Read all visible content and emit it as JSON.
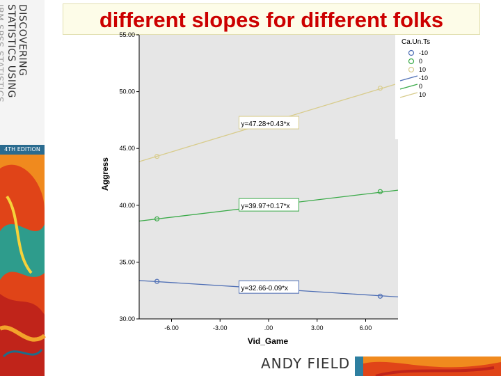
{
  "slide": {
    "title": "different slopes for different folks",
    "author_logo": "ANDY FIELD"
  },
  "book": {
    "lines": [
      "DISCOVERING",
      "STATISTICS USING",
      "IBM SPSS STATISTICS"
    ],
    "edition": "4TH EDITION"
  },
  "chart_data": {
    "type": "scatter",
    "xlabel": "Vid_Game",
    "ylabel": "Aggress",
    "xlim": [
      -8,
      8
    ],
    "ylim": [
      30,
      55
    ],
    "x_ticks": [
      -6,
      -3,
      0,
      3,
      6
    ],
    "x_tick_labels": [
      "-6.00",
      "-3.00",
      ".00",
      "3.00",
      "6.00"
    ],
    "y_ticks": [
      30,
      35,
      40,
      45,
      50,
      55
    ],
    "y_tick_labels": [
      "30.00",
      "35.00",
      "40.00",
      "45.00",
      "50.00",
      "55.00"
    ],
    "grid": false,
    "legend_title": "Ca.Un.Ts",
    "legend_position": "right",
    "legend_items": [
      {
        "kind": "marker",
        "label": "-10",
        "color": "#4f6fb5"
      },
      {
        "kind": "marker",
        "label": "0",
        "color": "#3aaa48"
      },
      {
        "kind": "marker",
        "label": "10",
        "color": "#d8cc8c"
      },
      {
        "kind": "line",
        "label": "-10",
        "color": "#4f6fb5"
      },
      {
        "kind": "line",
        "label": "0",
        "color": "#3aaa48"
      },
      {
        "kind": "line",
        "label": "10",
        "color": "#d8cc8c"
      }
    ],
    "series": [
      {
        "color": "#4f6fb5",
        "equation": "y=32.66-0.09*x",
        "intercept": 32.66,
        "slope": -0.09,
        "points": [
          [
            -6.9,
            33.3
          ],
          [
            6.9,
            32.0
          ]
        ]
      },
      {
        "color": "#3aaa48",
        "equation": "y=39.97+0.17*x",
        "intercept": 39.97,
        "slope": 0.17,
        "points": [
          [
            -6.9,
            38.8
          ],
          [
            6.9,
            41.2
          ]
        ]
      },
      {
        "color": "#d8cc8c",
        "equation": "y=47.28+0.43*x",
        "intercept": 47.28,
        "slope": 0.43,
        "points": [
          [
            -6.9,
            44.3
          ],
          [
            6.9,
            50.3
          ]
        ]
      }
    ]
  },
  "colors": {
    "title": "#cc0000",
    "plot_background": "#e6e6e6",
    "equation_box_border": "#8a95c2"
  }
}
